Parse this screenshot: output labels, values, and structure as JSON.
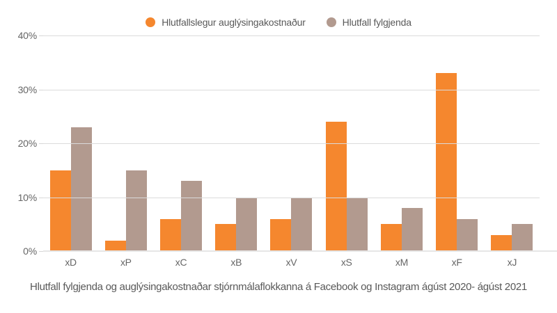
{
  "caption": "Hlutfall fylgjenda og auglýsingakostnaðar stjórnmálaflokkanna á Facebook og Instagram ágúst 2020- ágúst 2021",
  "colors": {
    "ad_cost": "#f5872e",
    "followers": "#b29a8f",
    "gridline": "#dbdbdb",
    "axis_text": "#666666",
    "caption_text": "#595959"
  },
  "chart_data": {
    "type": "bar",
    "categories": [
      "xD",
      "xP",
      "xC",
      "xB",
      "xV",
      "xS",
      "xM",
      "xF",
      "xJ"
    ],
    "series": [
      {
        "name": "Hlutfallslegur auglýsingakostnaður",
        "color": "#f5872e",
        "values": [
          15,
          2,
          6,
          5,
          6,
          24,
          5,
          33,
          3
        ]
      },
      {
        "name": "Hlutfall fylgjenda",
        "color": "#b29a8f",
        "values": [
          23,
          15,
          13,
          10,
          10,
          10,
          8,
          6,
          5
        ]
      }
    ],
    "title": "Hlutfall fylgjenda og auglýsingakostnaðar stjórnmálaflokkanna á Facebook og Instagram ágúst 2020- ágúst 2021",
    "xlabel": "",
    "ylabel": "",
    "ylim": [
      0,
      40
    ],
    "yticks": [
      {
        "value": 0,
        "label": "0%"
      },
      {
        "value": 10,
        "label": "10%"
      },
      {
        "value": 20,
        "label": "20%"
      },
      {
        "value": 30,
        "label": "30%"
      },
      {
        "value": 40,
        "label": "40%"
      }
    ],
    "grid": true,
    "legend_position": "top-center"
  }
}
